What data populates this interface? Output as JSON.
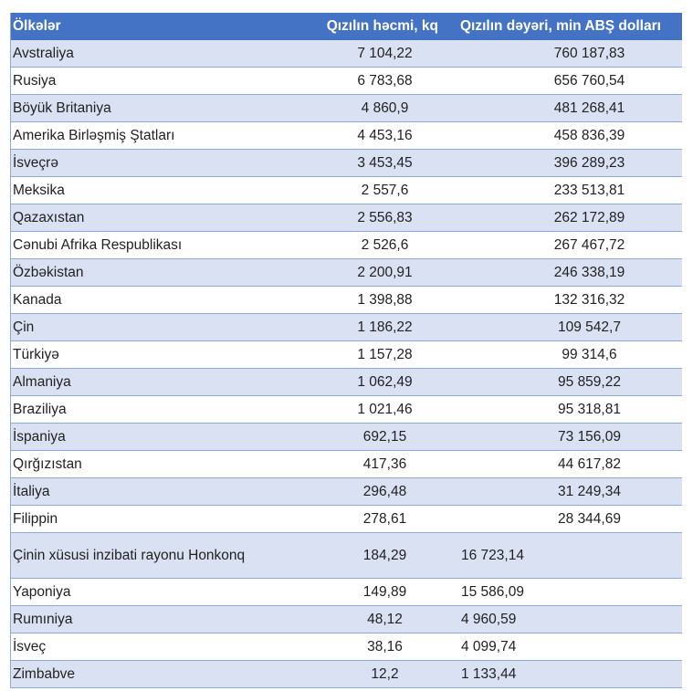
{
  "headers": [
    "Ölkələr",
    "Qızılın həcmi, kq",
    "Qızılın dəyəri, min ABŞ dolları"
  ],
  "colors": {
    "header_bg": "#4472c4",
    "alt_row_bg": "#d9e1f2",
    "border": "#8eaadb"
  },
  "rows": [
    [
      "Avstraliya",
      "7 104,22",
      "760 187,83"
    ],
    [
      "Rusiya",
      "6 783,68",
      "656 760,54"
    ],
    [
      "Böyük Britaniya",
      "4 860,9",
      "481 268,41"
    ],
    [
      "Amerika Birləşmiş Ştatları",
      "4 453,16",
      "458 836,39"
    ],
    [
      "İsveçrə",
      "3 453,45",
      "396 289,23"
    ],
    [
      "Meksika",
      "2 557,6",
      "233 513,81"
    ],
    [
      "Qazaxıstan",
      "2 556,83",
      "262 172,89"
    ],
    [
      "Cənubi Afrika Respublikası",
      "2 526,6",
      "267 467,72"
    ],
    [
      "Özbəkistan",
      "2 200,91",
      "246 338,19"
    ],
    [
      "Kanada",
      "1 398,88",
      "132 316,32"
    ],
    [
      "Çin",
      "1 186,22",
      "109 542,7"
    ],
    [
      "Türkiyə",
      "1 157,28",
      "99 314,6"
    ],
    [
      "Almaniya",
      "1 062,49",
      "95 859,22"
    ],
    [
      "Braziliya",
      "1 021,46",
      "95 318,81"
    ],
    [
      "İspaniya",
      "692,15",
      "73 156,09"
    ],
    [
      "Qırğızıstan",
      "417,36",
      "44 617,82"
    ],
    [
      "İtaliya",
      "296,48",
      "31 249,34"
    ],
    [
      "Filippin",
      "278,61",
      "28 344,69"
    ],
    [
      "Çinin xüsusi inzibati rayonu Honkonq",
      "184,29",
      "16 723,14"
    ],
    [
      "Yaponiya",
      "149,89",
      "15 586,09"
    ],
    [
      "Rumıniya",
      "48,12",
      "4 960,59"
    ],
    [
      "İsveç",
      "38,16",
      "4 099,74"
    ],
    [
      "Zimbabve",
      "12,2",
      "1 133,44"
    ]
  ]
}
